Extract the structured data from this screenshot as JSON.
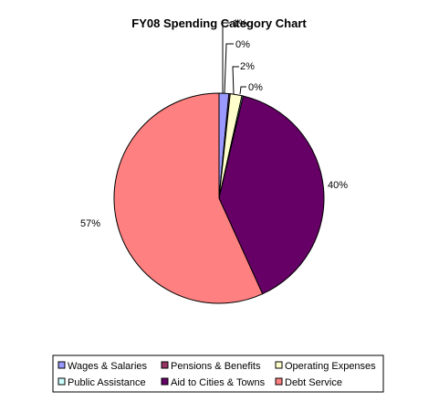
{
  "chart_data": {
    "type": "pie",
    "title": "FY08 Spending Category Chart",
    "slices": [
      {
        "name": "Wages & Salaries",
        "value": 1.5,
        "label": "1%",
        "color": "#9999ff"
      },
      {
        "name": "Pensions & Benefits",
        "value": 0.2,
        "label": "0%",
        "color": "#993366"
      },
      {
        "name": "Operating Expenses",
        "value": 1.8,
        "label": "2%",
        "color": "#ffffcc"
      },
      {
        "name": "Public Assistance",
        "value": 0.2,
        "label": "0%",
        "color": "#ccffff"
      },
      {
        "name": "Aid to Cities & Towns",
        "value": 39.5,
        "label": "40%",
        "color": "#660066"
      },
      {
        "name": "Debt Service",
        "value": 56.8,
        "label": "57%",
        "color": "#ff8080"
      }
    ],
    "legend_position": "bottom"
  }
}
